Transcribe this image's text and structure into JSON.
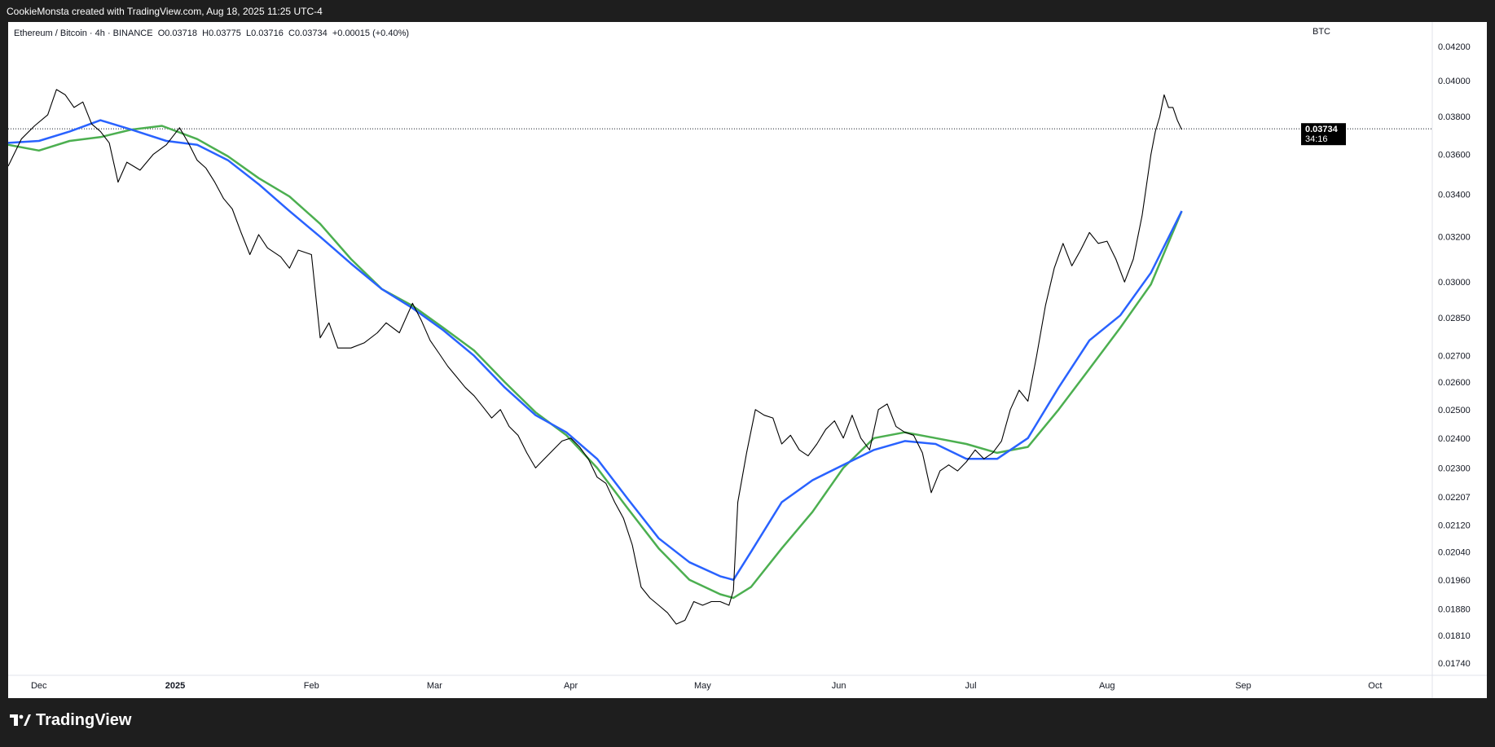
{
  "header": {
    "attribution": "CookieMonsta created with TradingView.com, Aug 18, 2025 11:25 UTC-4"
  },
  "legend": {
    "symbol": "Ethereum / Bitcoin · 4h · BINANCE",
    "open": "O0.03718",
    "high": "H0.03775",
    "low": "L0.03716",
    "close": "C0.03734",
    "change": "+0.00015 (+0.40%)"
  },
  "price_axis": {
    "unit": "BTC"
  },
  "price_badge": {
    "price": "0.03734",
    "countdown": "34:16",
    "color": "#000000"
  },
  "footer": {
    "logo_text": "TradingView"
  },
  "colors": {
    "price": "#000000",
    "ma_fast": "#2962ff",
    "ma_slow": "#4caf50",
    "background": "#ffffff"
  },
  "chart_data": {
    "type": "line",
    "title": "Ethereum / Bitcoin · 4h · BINANCE",
    "y_scale": "log",
    "ylim": [
      0.0171,
      0.0435
    ],
    "y_ticks": [
      "0.04200",
      "0.04000",
      "0.03800",
      "0.03600",
      "0.03400",
      "0.03200",
      "0.03000",
      "0.02850",
      "0.02700",
      "0.02600",
      "0.02500",
      "0.02400",
      "0.02300",
      "0.02207",
      "0.02120",
      "0.02040",
      "0.01960",
      "0.01880",
      "0.01810",
      "0.01740"
    ],
    "x_ticks": [
      {
        "label": "Dec",
        "date": "2024-12-01",
        "bold": false
      },
      {
        "label": "2025",
        "date": "2025-01-01",
        "bold": true
      },
      {
        "label": "Feb",
        "date": "2025-02-01",
        "bold": false
      },
      {
        "label": "Mar",
        "date": "2025-03-01",
        "bold": false
      },
      {
        "label": "Apr",
        "date": "2025-04-01",
        "bold": false
      },
      {
        "label": "May",
        "date": "2025-05-01",
        "bold": false
      },
      {
        "label": "Jun",
        "date": "2025-06-01",
        "bold": false
      },
      {
        "label": "Jul",
        "date": "2025-07-01",
        "bold": false
      },
      {
        "label": "Aug",
        "date": "2025-08-01",
        "bold": false
      },
      {
        "label": "Sep",
        "date": "2025-09-01",
        "bold": false
      },
      {
        "label": "Oct",
        "date": "2025-10-01",
        "bold": false
      }
    ],
    "xlim": [
      "2024-11-24",
      "2025-10-14"
    ],
    "last_price": 0.03734,
    "series": [
      {
        "role": "price",
        "points": [
          [
            "2024-11-24",
            0.0354
          ],
          [
            "2024-11-27",
            0.0368
          ],
          [
            "2024-11-30",
            0.0375
          ],
          [
            "2024-12-03",
            0.0381
          ],
          [
            "2024-12-05",
            0.0395
          ],
          [
            "2024-12-07",
            0.0392
          ],
          [
            "2024-12-09",
            0.0385
          ],
          [
            "2024-12-11",
            0.0388
          ],
          [
            "2024-12-13",
            0.0376
          ],
          [
            "2024-12-15",
            0.0372
          ],
          [
            "2024-12-17",
            0.0366
          ],
          [
            "2024-12-19",
            0.0346
          ],
          [
            "2024-12-21",
            0.0356
          ],
          [
            "2024-12-24",
            0.0352
          ],
          [
            "2024-12-27",
            0.036
          ],
          [
            "2024-12-30",
            0.0365
          ],
          [
            "2025-01-02",
            0.0374
          ],
          [
            "2025-01-04",
            0.0366
          ],
          [
            "2025-01-06",
            0.0357
          ],
          [
            "2025-01-08",
            0.0353
          ],
          [
            "2025-01-10",
            0.0346
          ],
          [
            "2025-01-12",
            0.0338
          ],
          [
            "2025-01-14",
            0.0333
          ],
          [
            "2025-01-16",
            0.0322
          ],
          [
            "2025-01-18",
            0.0312
          ],
          [
            "2025-01-20",
            0.0321
          ],
          [
            "2025-01-22",
            0.0315
          ],
          [
            "2025-01-25",
            0.0311
          ],
          [
            "2025-01-27",
            0.0306
          ],
          [
            "2025-01-29",
            0.0314
          ],
          [
            "2025-02-01",
            0.0312
          ],
          [
            "2025-02-03",
            0.0277
          ],
          [
            "2025-02-05",
            0.0283
          ],
          [
            "2025-02-07",
            0.0273
          ],
          [
            "2025-02-10",
            0.0273
          ],
          [
            "2025-02-13",
            0.0275
          ],
          [
            "2025-02-16",
            0.0279
          ],
          [
            "2025-02-18",
            0.0283
          ],
          [
            "2025-02-21",
            0.0279
          ],
          [
            "2025-02-24",
            0.0291
          ],
          [
            "2025-02-26",
            0.0284
          ],
          [
            "2025-02-28",
            0.0276
          ],
          [
            "2025-03-02",
            0.0271
          ],
          [
            "2025-03-04",
            0.0266
          ],
          [
            "2025-03-06",
            0.0262
          ],
          [
            "2025-03-08",
            0.0258
          ],
          [
            "2025-03-10",
            0.0255
          ],
          [
            "2025-03-12",
            0.0251
          ],
          [
            "2025-03-14",
            0.0247
          ],
          [
            "2025-03-16",
            0.025
          ],
          [
            "2025-03-18",
            0.0244
          ],
          [
            "2025-03-20",
            0.0241
          ],
          [
            "2025-03-22",
            0.0235
          ],
          [
            "2025-03-24",
            0.023
          ],
          [
            "2025-03-26",
            0.0233
          ],
          [
            "2025-03-28",
            0.0236
          ],
          [
            "2025-03-30",
            0.0239
          ],
          [
            "2025-04-01",
            0.024
          ],
          [
            "2025-04-03",
            0.0237
          ],
          [
            "2025-04-05",
            0.0233
          ],
          [
            "2025-04-07",
            0.0227
          ],
          [
            "2025-04-09",
            0.0225
          ],
          [
            "2025-04-11",
            0.0219
          ],
          [
            "2025-04-13",
            0.0214
          ],
          [
            "2025-04-15",
            0.0206
          ],
          [
            "2025-04-17",
            0.0194
          ],
          [
            "2025-04-19",
            0.0191
          ],
          [
            "2025-04-21",
            0.0189
          ],
          [
            "2025-04-23",
            0.0187
          ],
          [
            "2025-04-25",
            0.0184
          ],
          [
            "2025-04-27",
            0.0185
          ],
          [
            "2025-04-29",
            0.019
          ],
          [
            "2025-05-01",
            0.0189
          ],
          [
            "2025-05-03",
            0.019
          ],
          [
            "2025-05-05",
            0.019
          ],
          [
            "2025-05-07",
            0.0189
          ],
          [
            "2025-05-08",
            0.0193
          ],
          [
            "2025-05-09",
            0.0219
          ],
          [
            "2025-05-11",
            0.0235
          ],
          [
            "2025-05-13",
            0.025
          ],
          [
            "2025-05-15",
            0.0248
          ],
          [
            "2025-05-17",
            0.0247
          ],
          [
            "2025-05-19",
            0.0238
          ],
          [
            "2025-05-21",
            0.0241
          ],
          [
            "2025-05-23",
            0.0236
          ],
          [
            "2025-05-25",
            0.0234
          ],
          [
            "2025-05-27",
            0.0238
          ],
          [
            "2025-05-29",
            0.0243
          ],
          [
            "2025-05-31",
            0.0246
          ],
          [
            "2025-06-02",
            0.024
          ],
          [
            "2025-06-04",
            0.0248
          ],
          [
            "2025-06-06",
            0.024
          ],
          [
            "2025-06-08",
            0.0236
          ],
          [
            "2025-06-10",
            0.025
          ],
          [
            "2025-06-12",
            0.0252
          ],
          [
            "2025-06-14",
            0.0244
          ],
          [
            "2025-06-16",
            0.0242
          ],
          [
            "2025-06-18",
            0.0241
          ],
          [
            "2025-06-20",
            0.0235
          ],
          [
            "2025-06-22",
            0.0222
          ],
          [
            "2025-06-24",
            0.0229
          ],
          [
            "2025-06-26",
            0.0231
          ],
          [
            "2025-06-28",
            0.0229
          ],
          [
            "2025-06-30",
            0.0232
          ],
          [
            "2025-07-02",
            0.0236
          ],
          [
            "2025-07-04",
            0.0233
          ],
          [
            "2025-07-06",
            0.0235
          ],
          [
            "2025-07-08",
            0.0239
          ],
          [
            "2025-07-10",
            0.025
          ],
          [
            "2025-07-12",
            0.0257
          ],
          [
            "2025-07-14",
            0.0253
          ],
          [
            "2025-07-16",
            0.027
          ],
          [
            "2025-07-18",
            0.029
          ],
          [
            "2025-07-20",
            0.0306
          ],
          [
            "2025-07-22",
            0.0317
          ],
          [
            "2025-07-24",
            0.0307
          ],
          [
            "2025-07-26",
            0.0314
          ],
          [
            "2025-07-28",
            0.0322
          ],
          [
            "2025-07-30",
            0.0317
          ],
          [
            "2025-08-01",
            0.0318
          ],
          [
            "2025-08-03",
            0.031
          ],
          [
            "2025-08-05",
            0.03
          ],
          [
            "2025-08-07",
            0.031
          ],
          [
            "2025-08-09",
            0.033
          ],
          [
            "2025-08-11",
            0.036
          ],
          [
            "2025-08-12",
            0.0372
          ],
          [
            "2025-08-13",
            0.038
          ],
          [
            "2025-08-14",
            0.0392
          ],
          [
            "2025-08-15",
            0.0385
          ],
          [
            "2025-08-16",
            0.0385
          ],
          [
            "2025-08-17",
            0.0378
          ],
          [
            "2025-08-18",
            0.0373
          ]
        ]
      },
      {
        "role": "ma_fast",
        "points": [
          [
            "2024-11-24",
            0.0366
          ],
          [
            "2024-12-01",
            0.0367
          ],
          [
            "2024-12-08",
            0.0372
          ],
          [
            "2024-12-15",
            0.0378
          ],
          [
            "2024-12-22",
            0.0373
          ],
          [
            "2024-12-30",
            0.0367
          ],
          [
            "2025-01-06",
            0.0365
          ],
          [
            "2025-01-13",
            0.0357
          ],
          [
            "2025-01-20",
            0.0345
          ],
          [
            "2025-01-27",
            0.0332
          ],
          [
            "2025-02-03",
            0.032
          ],
          [
            "2025-02-10",
            0.0308
          ],
          [
            "2025-02-17",
            0.0297
          ],
          [
            "2025-02-24",
            0.0289
          ],
          [
            "2025-03-03",
            0.028
          ],
          [
            "2025-03-10",
            0.027
          ],
          [
            "2025-03-17",
            0.0258
          ],
          [
            "2025-03-24",
            0.0248
          ],
          [
            "2025-03-31",
            0.0242
          ],
          [
            "2025-04-07",
            0.0233
          ],
          [
            "2025-04-14",
            0.022
          ],
          [
            "2025-04-21",
            0.0208
          ],
          [
            "2025-04-28",
            0.0201
          ],
          [
            "2025-05-05",
            0.0197
          ],
          [
            "2025-05-08",
            0.0196
          ],
          [
            "2025-05-12",
            0.0204
          ],
          [
            "2025-05-19",
            0.0219
          ],
          [
            "2025-05-26",
            0.0226
          ],
          [
            "2025-06-02",
            0.0231
          ],
          [
            "2025-06-09",
            0.0236
          ],
          [
            "2025-06-16",
            0.0239
          ],
          [
            "2025-06-23",
            0.0238
          ],
          [
            "2025-06-30",
            0.0233
          ],
          [
            "2025-07-07",
            0.0233
          ],
          [
            "2025-07-14",
            0.024
          ],
          [
            "2025-07-21",
            0.0258
          ],
          [
            "2025-07-28",
            0.0276
          ],
          [
            "2025-08-04",
            0.0286
          ],
          [
            "2025-08-11",
            0.0304
          ],
          [
            "2025-08-18",
            0.0332
          ]
        ]
      },
      {
        "role": "ma_slow",
        "points": [
          [
            "2024-11-24",
            0.0365
          ],
          [
            "2024-12-01",
            0.0362
          ],
          [
            "2024-12-08",
            0.0367
          ],
          [
            "2024-12-15",
            0.0369
          ],
          [
            "2024-12-22",
            0.0373
          ],
          [
            "2024-12-29",
            0.0375
          ],
          [
            "2025-01-06",
            0.0368
          ],
          [
            "2025-01-13",
            0.0359
          ],
          [
            "2025-01-20",
            0.0348
          ],
          [
            "2025-01-27",
            0.0339
          ],
          [
            "2025-02-03",
            0.0326
          ],
          [
            "2025-02-10",
            0.031
          ],
          [
            "2025-02-17",
            0.0297
          ],
          [
            "2025-02-24",
            0.029
          ],
          [
            "2025-03-03",
            0.0281
          ],
          [
            "2025-03-10",
            0.0272
          ],
          [
            "2025-03-17",
            0.026
          ],
          [
            "2025-03-24",
            0.0249
          ],
          [
            "2025-03-31",
            0.0241
          ],
          [
            "2025-04-07",
            0.023
          ],
          [
            "2025-04-14",
            0.0217
          ],
          [
            "2025-04-21",
            0.0205
          ],
          [
            "2025-04-28",
            0.0196
          ],
          [
            "2025-05-05",
            0.0192
          ],
          [
            "2025-05-08",
            0.0191
          ],
          [
            "2025-05-12",
            0.0194
          ],
          [
            "2025-05-19",
            0.0205
          ],
          [
            "2025-05-26",
            0.0216
          ],
          [
            "2025-06-02",
            0.023
          ],
          [
            "2025-06-09",
            0.024
          ],
          [
            "2025-06-16",
            0.0242
          ],
          [
            "2025-06-23",
            0.024
          ],
          [
            "2025-06-30",
            0.0238
          ],
          [
            "2025-07-07",
            0.0235
          ],
          [
            "2025-07-14",
            0.0237
          ],
          [
            "2025-07-21",
            0.025
          ],
          [
            "2025-07-28",
            0.0265
          ],
          [
            "2025-08-04",
            0.0281
          ],
          [
            "2025-08-11",
            0.0299
          ],
          [
            "2025-08-18",
            0.0332
          ]
        ]
      }
    ]
  }
}
